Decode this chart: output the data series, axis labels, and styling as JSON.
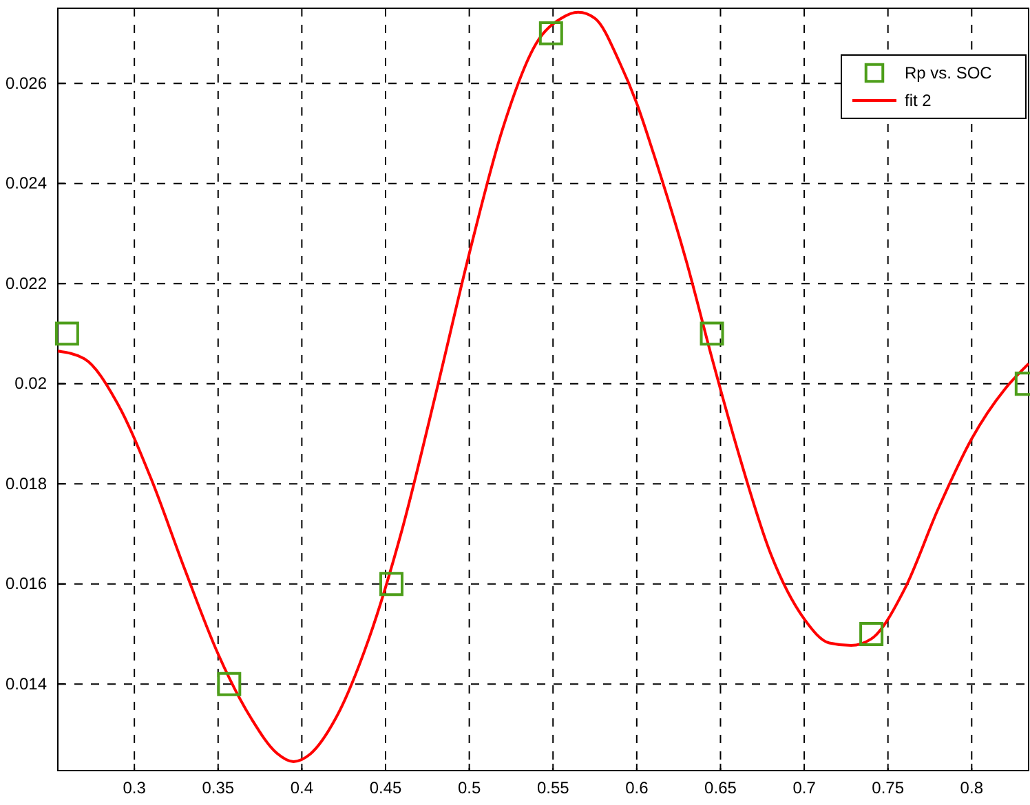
{
  "chart_data": {
    "type": "line",
    "xlim": [
      0.2543,
      0.834
    ],
    "ylim": [
      0.01227,
      0.0275
    ],
    "xticks": [
      0.3,
      0.35,
      0.4,
      0.45,
      0.5,
      0.55,
      0.6,
      0.65,
      0.7,
      0.75,
      0.8
    ],
    "yticks": [
      0.014,
      0.016,
      0.018,
      0.02,
      0.022,
      0.024,
      0.026
    ],
    "grid": true,
    "legend": "top right",
    "series": [
      {
        "name": "Rp vs. SOC",
        "type": "scatter",
        "marker": "square",
        "color": "#4d9e1a",
        "x": [
          0.2598,
          0.3566,
          0.4535,
          0.5488,
          0.6449,
          0.7401,
          0.8329
        ],
        "values": [
          0.021,
          0.014,
          0.016,
          0.027,
          0.021,
          0.015,
          0.02
        ]
      },
      {
        "name": "fit 2",
        "color": "#ff0000",
        "x": [
          0.2543,
          0.27,
          0.29,
          0.31,
          0.33,
          0.35,
          0.37,
          0.385,
          0.395,
          0.405,
          0.42,
          0.44,
          0.46,
          0.48,
          0.5,
          0.52,
          0.54,
          0.555,
          0.565,
          0.575,
          0.59,
          0.6,
          0.61,
          0.63,
          0.645,
          0.66,
          0.68,
          0.7,
          0.715,
          0.728,
          0.74,
          0.76,
          0.78,
          0.8,
          0.82,
          0.834
        ],
        "values": [
          0.02065,
          0.0205,
          0.0196,
          0.0181,
          0.0163,
          0.0146,
          0.0133,
          0.01262,
          0.01245,
          0.0126,
          0.0133,
          0.0149,
          0.0171,
          0.0198,
          0.0226,
          0.0251,
          0.0268,
          0.0273,
          0.02742,
          0.0273,
          0.0264,
          0.0256,
          0.0246,
          0.0224,
          0.0205,
          0.0187,
          0.0166,
          0.0153,
          0.01482,
          0.01477,
          0.0149,
          0.0159,
          0.0175,
          0.0189,
          0.0199,
          0.0204
        ]
      }
    ]
  }
}
